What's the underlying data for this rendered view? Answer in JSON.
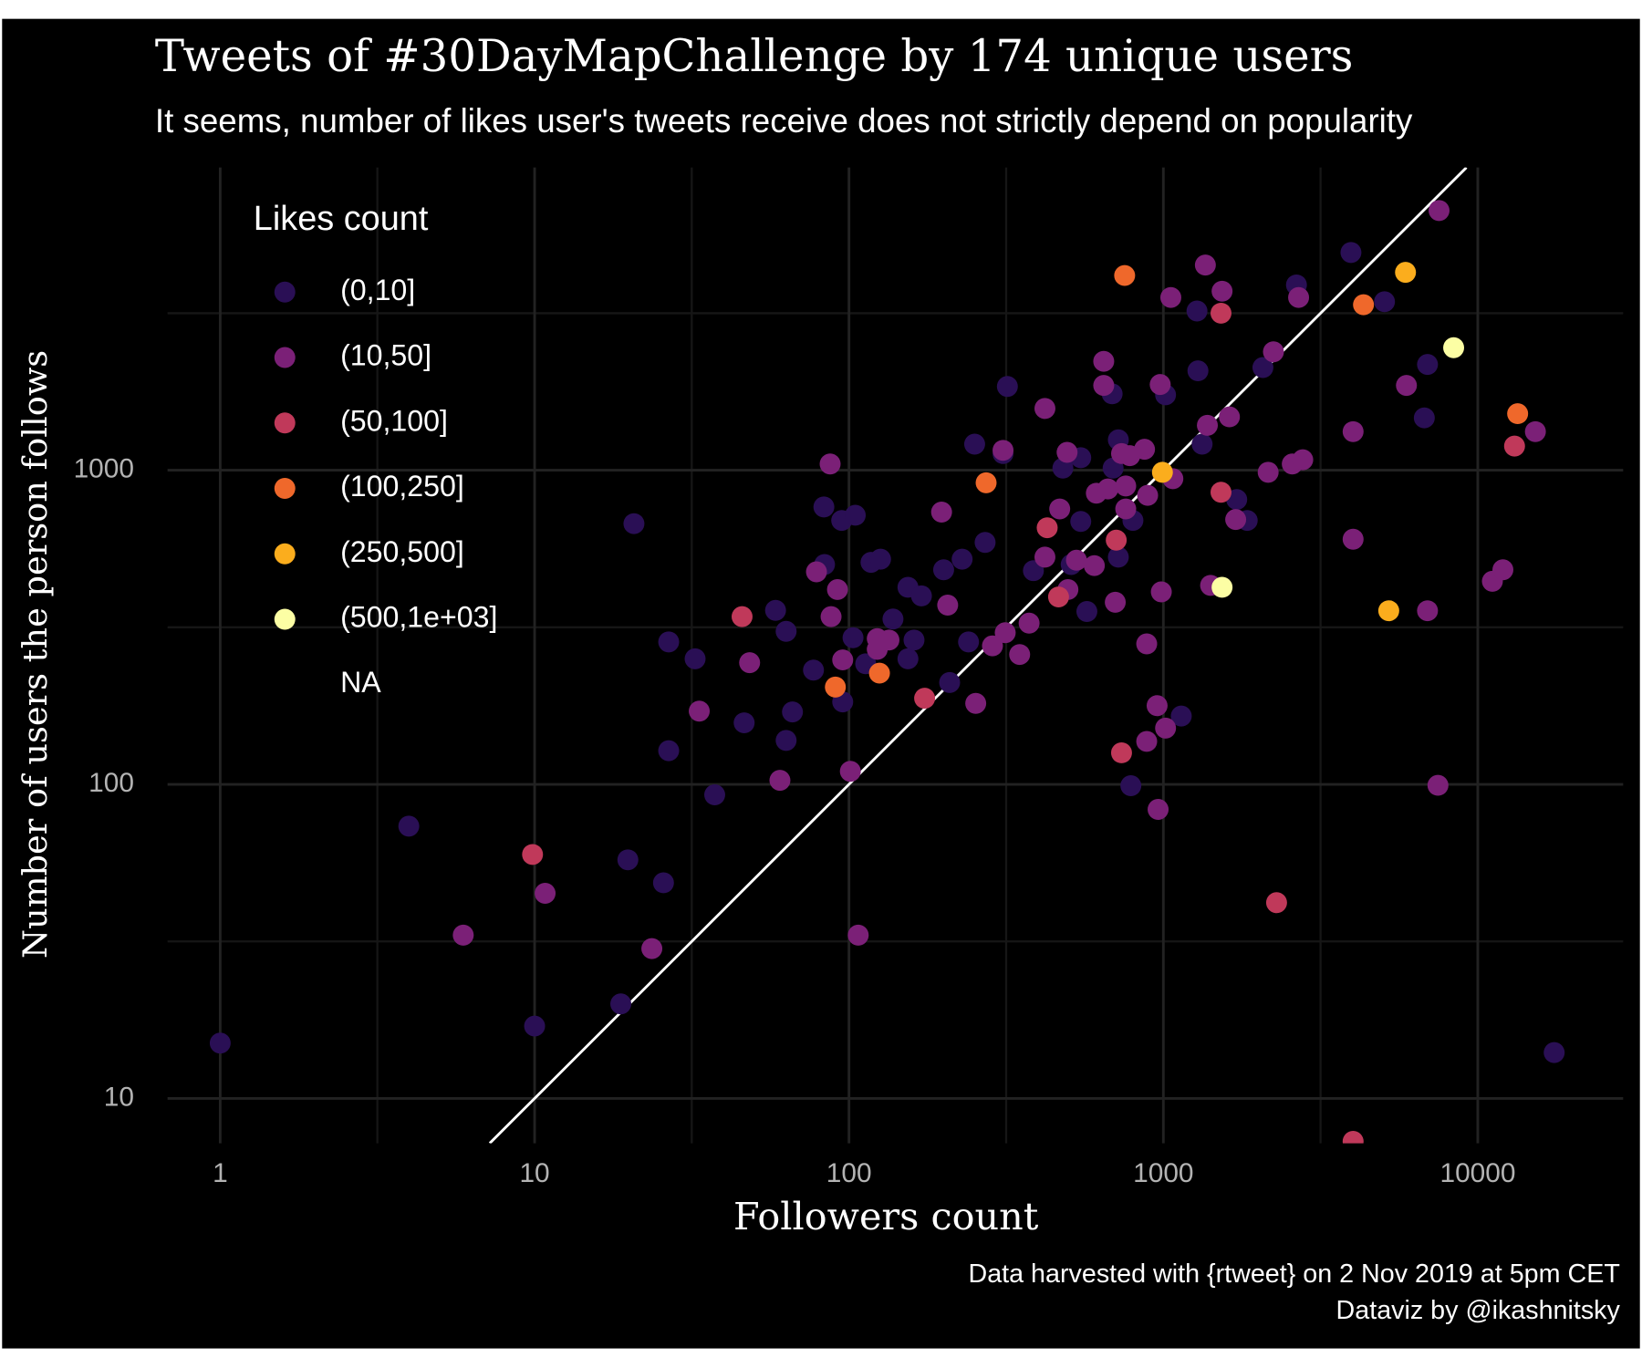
{
  "chart_data": {
    "type": "scatter",
    "title": "Tweets of #30DayMapChallenge by 174 unique users",
    "subtitle": "It seems, number of likes user's tweets receive does not strictly depend on popularity",
    "x_label": "Followers count",
    "y_label": "Number of users the person follows",
    "caption": [
      "Data harvested with {rtweet} on 2 Nov 2019 at 5pm CET",
      "Dataviz by @ikashnitsky"
    ],
    "legend_title": "Likes count",
    "xlog": true,
    "ylog": true,
    "grid": true,
    "identity_line": true,
    "xlim": [
      0.68,
      29000
    ],
    "ylim": [
      7.2,
      9200
    ],
    "xticks": [
      1,
      10,
      100,
      1000,
      10000
    ],
    "yticks": [
      10,
      100,
      1000
    ],
    "xminor": [
      3.162,
      31.62,
      316.2,
      3162
    ],
    "yminor": [
      31.62,
      316.2,
      3162
    ],
    "series": [
      {
        "name": "(0,10]",
        "color": "#2a0f55",
        "x": [
          1,
          3.98,
          10,
          19.8,
          18.8,
          25.7,
          20.7,
          26.7,
          26.7,
          32.4,
          37.4,
          46.4,
          58.4,
          63.1,
          63.1,
          66.1,
          77.1,
          83.2,
          83.6,
          94.8,
          104.7,
          95.5,
          103,
          113,
          117.5,
          126,
          138,
          154,
          154,
          161,
          170,
          200,
          209,
          229,
          240,
          251,
          271,
          309,
          319,
          386,
          479,
          509,
          546,
          546,
          571,
          687,
          692,
          719,
          719,
          800,
          788,
          1016,
          1328,
          1140,
          1288,
          1279,
          1711,
          1848,
          2073,
          2650,
          3950,
          5050,
          6920,
          6760,
          17500
        ],
        "values": [
          15,
          73.6,
          17,
          57.5,
          20,
          48.6,
          676,
          284,
          128,
          251,
          92.6,
          157,
          358,
          307,
          138,
          170,
          231,
          764,
          501,
          692,
          719,
          183,
          293,
          242,
          509,
          521,
          336,
          424,
          251,
          288,
          398,
          482,
          211,
          521,
          284,
          1211,
          589,
          1130,
          1848,
          479,
          1016,
          501,
          687,
          1096,
          355,
          1751,
          1016,
          1250,
          529,
          692,
          99,
          1738,
          1211,
          165,
          2073,
          3213,
          807,
          692,
          2123,
          3890,
          4935,
          3440,
          2172,
          1468,
          14
        ]
      },
      {
        "name": "(10,50]",
        "color": "#7b2077",
        "x": [
          5.93,
          10.8,
          23.6,
          33.4,
          48.3,
          60.3,
          78.8,
          87.1,
          87.7,
          91.9,
          95.5,
          101,
          107,
          123,
          123,
          134,
          197,
          206,
          253,
          286,
          309,
          314,
          349,
          374,
          420,
          420,
          468,
          494,
          497,
          529,
          603,
          612,
          646,
          646,
          666,
          703,
          736,
          759,
          759,
          782,
          871,
          885,
          885,
          891,
          955,
          962,
          977,
          985,
          1016,
          1072,
          1056,
          1360,
          1380,
          1413,
          1537,
          1622,
          1698,
          2154,
          2239,
          2570,
          2775,
          2692,
          4013,
          4013,
          5930,
          6920,
          7470,
          7530,
          11130,
          12020,
          15250
        ],
        "values": [
          33.1,
          45,
          30,
          171,
          244,
          103,
          475,
          1047,
          342,
          417,
          249,
          110,
          33.1,
          291,
          269,
          288,
          736,
          372,
          181,
          276,
          1157,
          304,
          259,
          326,
          1573,
          529,
          753,
          1140,
          417,
          517,
          497,
          845,
          2222,
          1862,
          872,
          380,
          1130,
          891,
          753,
          1113,
          1166,
          280,
          137,
          832,
          178,
          83.2,
          1875,
          410,
          151,
          940,
          3548,
          4500,
          1390,
          430,
          3715,
          1479,
          697,
          985,
          2382,
          1047,
          1080,
          3548,
          603,
          1327,
          1862,
          357,
          99.3,
          6710,
          443,
          482,
          1327
        ]
      },
      {
        "name": "(50,100]",
        "color": "#c0395a",
        "x": [
          9.85,
          45.7,
          174,
          427,
          464,
          708,
          736,
          1525,
          1525,
          2291,
          4013,
          13090
        ],
        "values": [
          59.8,
          342,
          188,
          656,
          395,
          599,
          126,
          3162,
          851,
          42,
          7.3,
          1194
        ]
      },
      {
        "name": "(100,250]",
        "color": "#ef682b",
        "x": [
          90.5,
          125,
          273,
          753,
          4330,
          13390
        ],
        "values": [
          204,
          226,
          912,
          4169,
          3365,
          1514
        ]
      },
      {
        "name": "(250,500]",
        "color": "#fbad1d",
        "x": [
          993,
          5210,
          5890
        ],
        "values": [
          985,
          357,
          4266
        ]
      },
      {
        "name": "(500,1e+03]",
        "color": "#fcfea4",
        "x": [
          1537,
          8380
        ],
        "values": [
          424,
          2455
        ]
      },
      {
        "name": "NA",
        "x": [],
        "values": []
      }
    ]
  }
}
